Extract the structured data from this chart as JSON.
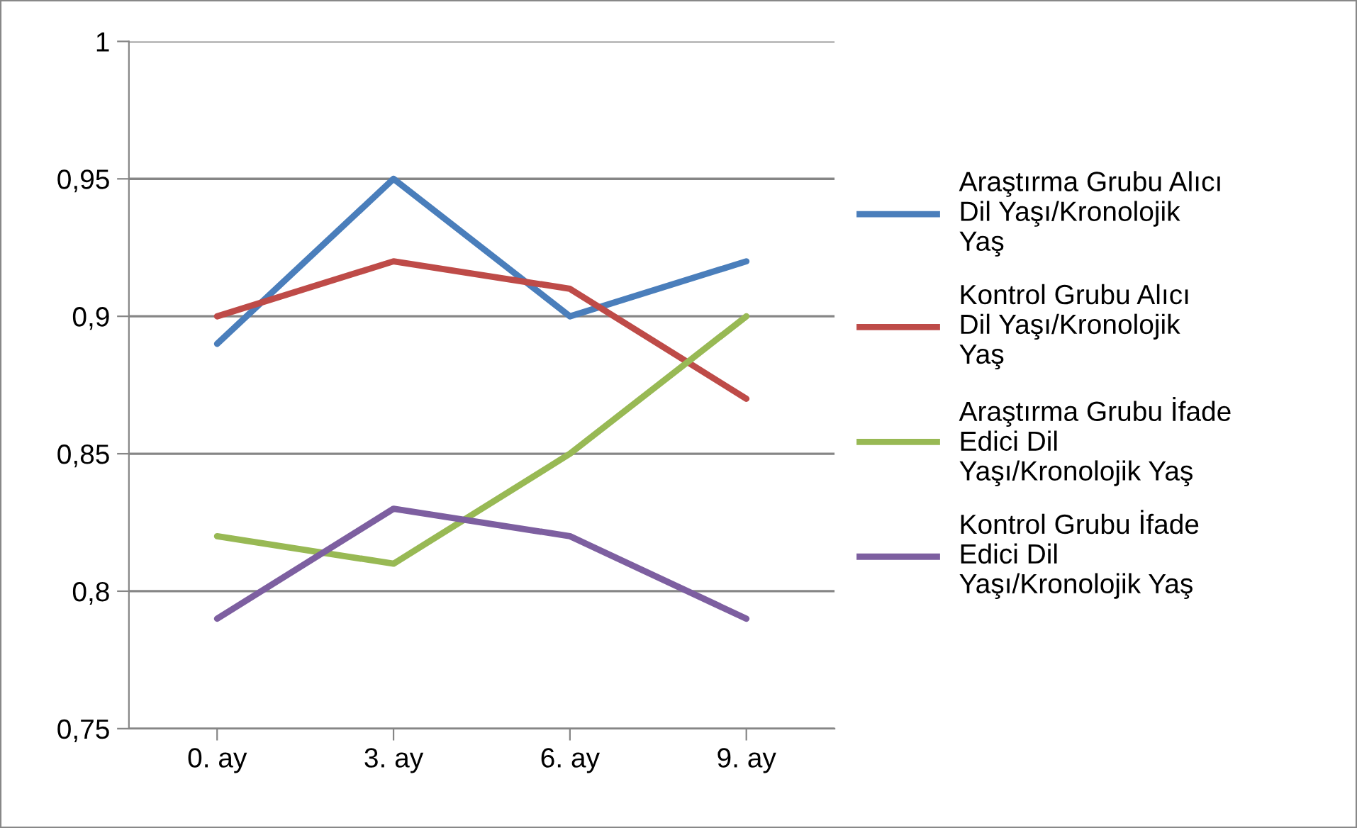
{
  "chart_data": {
    "type": "line",
    "categories": [
      "0. ay",
      "3. ay",
      "6. ay",
      "9. ay"
    ],
    "series": [
      {
        "name": "Araştırma Grubu Alıcı Dil Yaşı/Kronolojik Yaş",
        "color": "#4a7ebb",
        "values": [
          0.89,
          0.95,
          0.9,
          0.92
        ]
      },
      {
        "name": "Kontrol Grubu Alıcı Dil Yaşı/Kronolojik Yaş",
        "color": "#be4b48",
        "values": [
          0.9,
          0.92,
          0.91,
          0.87
        ]
      },
      {
        "name": "Araştırma Grubu İfade Edici Dil Yaşı/Kronolojik Yaş",
        "color": "#98b954",
        "values": [
          0.82,
          0.81,
          0.85,
          0.9
        ]
      },
      {
        "name": "Kontrol Grubu İfade Edici Dil Yaşı/Kronolojik Yaş",
        "color": "#7d5fa0",
        "values": [
          0.79,
          0.83,
          0.82,
          0.79
        ]
      }
    ],
    "ylim": [
      0.75,
      1
    ],
    "yticks": [
      {
        "value": 0.75,
        "label": "0,75"
      },
      {
        "value": 0.8,
        "label": "0,8"
      },
      {
        "value": 0.85,
        "label": "0,85"
      },
      {
        "value": 0.9,
        "label": "0,9"
      },
      {
        "value": 0.95,
        "label": "0,95"
      },
      1
    ],
    "grid": "y",
    "legend": "right",
    "marker": "none",
    "line_style": "solid"
  }
}
